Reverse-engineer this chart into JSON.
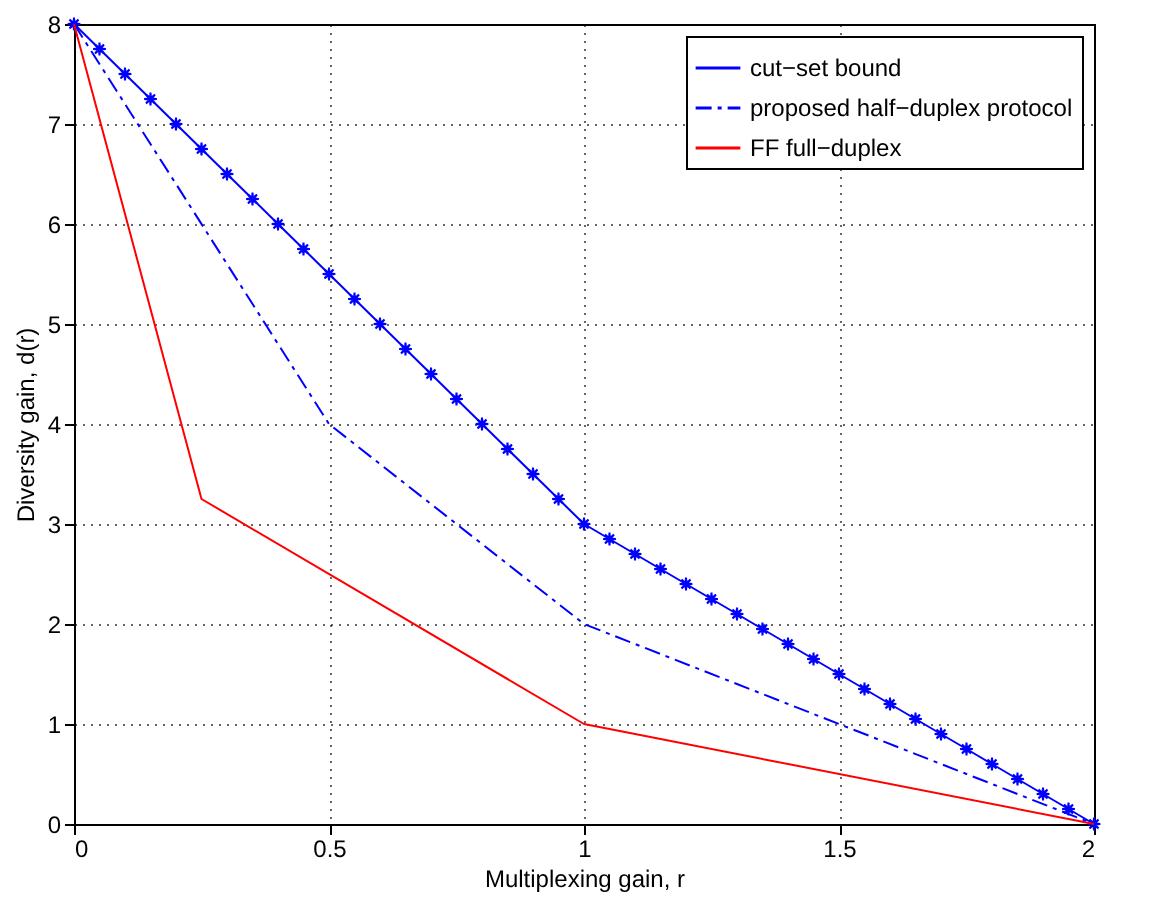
{
  "chart_data": {
    "type": "line",
    "xlabel": "Multiplexing gain, r",
    "ylabel": "Diversity gain, d(r)",
    "xlim": [
      0,
      2
    ],
    "ylim": [
      0,
      8
    ],
    "xticks": [
      0,
      0.5,
      1,
      1.5,
      2
    ],
    "yticks": [
      0,
      1,
      2,
      3,
      4,
      5,
      6,
      7,
      8
    ],
    "grid": true,
    "legend": "top right",
    "series": [
      {
        "name": "cut−set bound",
        "color": "#0000ff",
        "marker": "star",
        "line_style": "solid",
        "x": [
          0,
          0.05,
          0.1,
          0.15,
          0.2,
          0.25,
          0.3,
          0.35,
          0.4,
          0.45,
          0.5,
          0.55,
          0.6,
          0.65,
          0.7,
          0.75,
          0.8,
          0.85,
          0.9,
          0.95,
          1,
          1.05,
          1.1,
          1.15,
          1.2,
          1.25,
          1.3,
          1.35,
          1.4,
          1.45,
          1.5,
          1.55,
          1.6,
          1.65,
          1.7,
          1.75,
          1.8,
          1.85,
          1.9,
          1.95,
          2
        ],
        "values": [
          8,
          7.75,
          7.5,
          7.25,
          7,
          6.75,
          6.5,
          6.25,
          6,
          5.75,
          5.5,
          5.25,
          5,
          4.75,
          4.5,
          4.25,
          4,
          3.75,
          3.5,
          3.25,
          3,
          2.85,
          2.7,
          2.55,
          2.4,
          2.25,
          2.1,
          1.95,
          1.8,
          1.65,
          1.5,
          1.35,
          1.2,
          1.05,
          0.9,
          0.75,
          0.6,
          0.45,
          0.3,
          0.15,
          0
        ]
      },
      {
        "name": "proposed half−duplex protocol",
        "color": "#0000ff",
        "marker": "none",
        "line_style": "dashdot",
        "x": [
          0,
          0.5,
          1,
          2
        ],
        "values": [
          8,
          4,
          2,
          0
        ]
      },
      {
        "name": "FF full−duplex",
        "color": "#ff0000",
        "marker": "none",
        "line_style": "solid",
        "x": [
          0,
          0.25,
          1,
          2
        ],
        "values": [
          8,
          3.25,
          1,
          0
        ]
      }
    ]
  }
}
